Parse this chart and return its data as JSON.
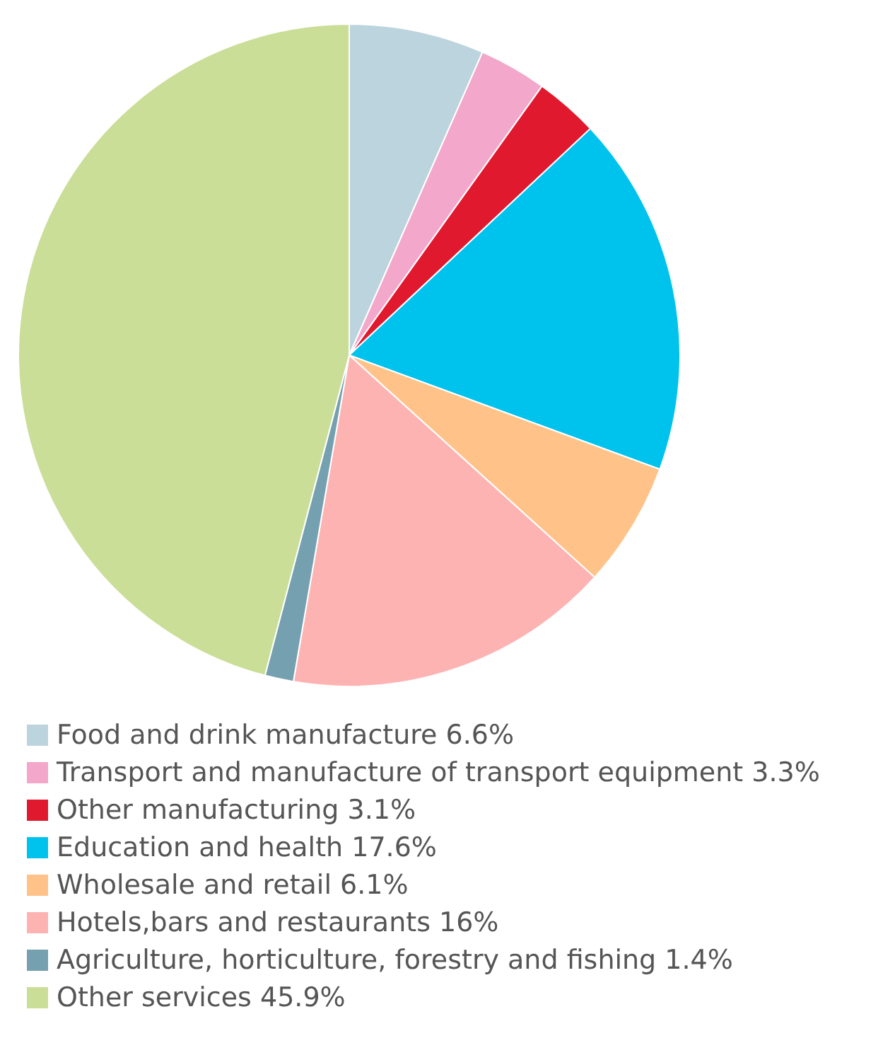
{
  "chart_data": {
    "type": "pie",
    "categories": [
      "Food and drink manufacture",
      "Transport and manufacture of transport equipment",
      "Other manufacturing",
      "Education and health",
      "Wholesale and retail",
      "Hotels,bars and restaurants",
      "Agriculture, horticulture, forestry and fishing",
      "Other services"
    ],
    "values": [
      6.6,
      3.3,
      3.1,
      17.6,
      6.1,
      16,
      1.4,
      45.9
    ],
    "value_labels": [
      "6.6%",
      "3.3%",
      "3.1%",
      "17.6%",
      "6.1%",
      "16%",
      "1.4%",
      "45.9%"
    ],
    "colors": [
      "#bcd4de",
      "#f2a7cb",
      "#e0192e",
      "#00c3ed",
      "#ffc38a",
      "#feb3b3",
      "#74a0b0",
      "#cade98"
    ],
    "legend": "bottom"
  }
}
